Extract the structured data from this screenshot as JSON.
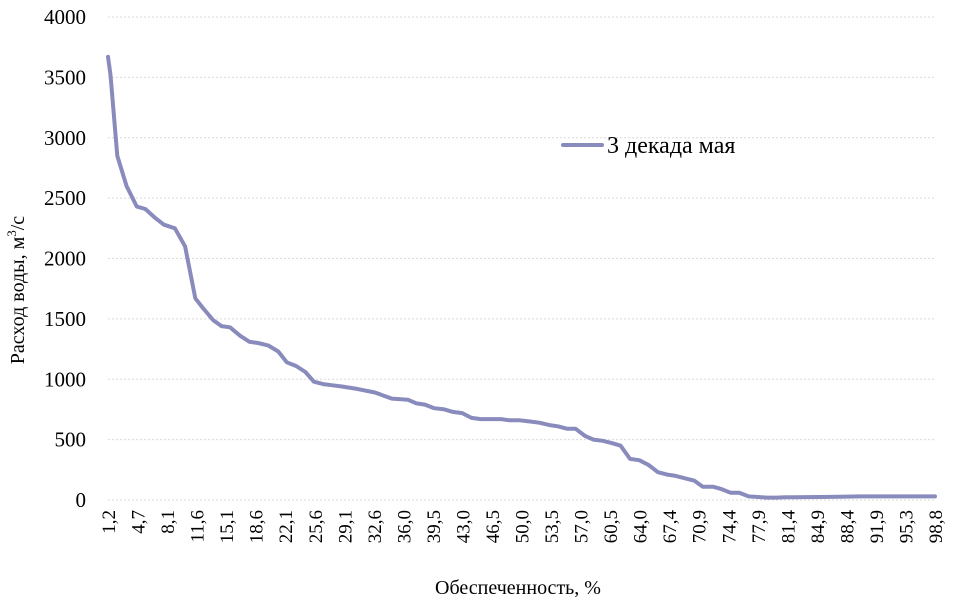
{
  "colors": {
    "series": "#8a8bbd",
    "grid": "#d9d9d9",
    "text": "#000000",
    "background": "#ffffff"
  },
  "chart_data": {
    "type": "line",
    "title": "",
    "xlabel": "Обеспеченность, %",
    "ylabel": "Расход воды, м³/с",
    "ylabel_main": "Расход воды, м",
    "ylabel_sup": "3",
    "ylabel_tail": "/с",
    "ylim": [
      0,
      4000
    ],
    "y_ticks": [
      "0",
      "500",
      "1000",
      "1500",
      "2000",
      "2500",
      "3000",
      "3500",
      "4000"
    ],
    "x_ticks": [
      "1,2",
      "4,7",
      "8,1",
      "11,6",
      "15,1",
      "18,6",
      "22,1",
      "25,6",
      "29,1",
      "32,6",
      "36,0",
      "39,5",
      "43,0",
      "46,5",
      "50,0",
      "53,5",
      "57,0",
      "60,5",
      "64,0",
      "67,4",
      "70,9",
      "74,4",
      "77,9",
      "81,4",
      "84,9",
      "88,4",
      "91,9",
      "95,3",
      "98,8"
    ],
    "xlim": [
      1.2,
      98.8
    ],
    "legend_position": "top-right",
    "series": [
      {
        "name": "3 декада мая",
        "x": [
          1.2,
          1.5,
          2.3,
          3.4,
          4.6,
          5.6,
          6.7,
          7.8,
          9.1,
          10.3,
          11.5,
          12.4,
          13.6,
          14.6,
          15.6,
          16.8,
          17.9,
          18.9,
          20.1,
          21.3,
          22.3,
          23.4,
          24.5,
          25.5,
          26.6,
          27.7,
          28.8,
          30.6,
          32.7,
          34.7,
          36.6,
          37.6,
          38.6,
          39.7,
          40.9,
          41.9,
          43.0,
          44.1,
          45.2,
          46.4,
          47.6,
          48.6,
          49.8,
          51.0,
          52.1,
          53.3,
          54.3,
          55.4,
          56.4,
          57.5,
          58.5,
          59.6,
          60.7,
          61.7,
          62.8,
          63.9,
          65.0,
          66.1,
          67.2,
          68.2,
          69.3,
          70.4,
          71.4,
          72.6,
          73.6,
          74.7,
          75.7,
          76.8,
          77.9,
          79.0,
          80.1,
          81.1,
          82.3,
          83.5,
          85.2,
          87.6,
          90.0,
          92.4,
          94.8,
          97.0,
          98.8
        ],
        "values": [
          3670,
          3520,
          2850,
          2600,
          2430,
          2410,
          2340,
          2280,
          2250,
          2100,
          1670,
          1590,
          1490,
          1440,
          1430,
          1360,
          1310,
          1300,
          1280,
          1230,
          1140,
          1110,
          1060,
          980,
          960,
          950,
          940,
          920,
          890,
          840,
          830,
          800,
          790,
          760,
          750,
          730,
          720,
          680,
          670,
          670,
          670,
          660,
          660,
          650,
          640,
          620,
          610,
          590,
          590,
          530,
          500,
          490,
          470,
          450,
          340,
          330,
          290,
          230,
          210,
          200,
          180,
          160,
          110,
          110,
          90,
          60,
          60,
          30,
          25,
          20,
          20,
          22,
          22,
          24,
          25,
          27,
          30,
          30,
          30,
          30,
          30
        ]
      }
    ]
  }
}
